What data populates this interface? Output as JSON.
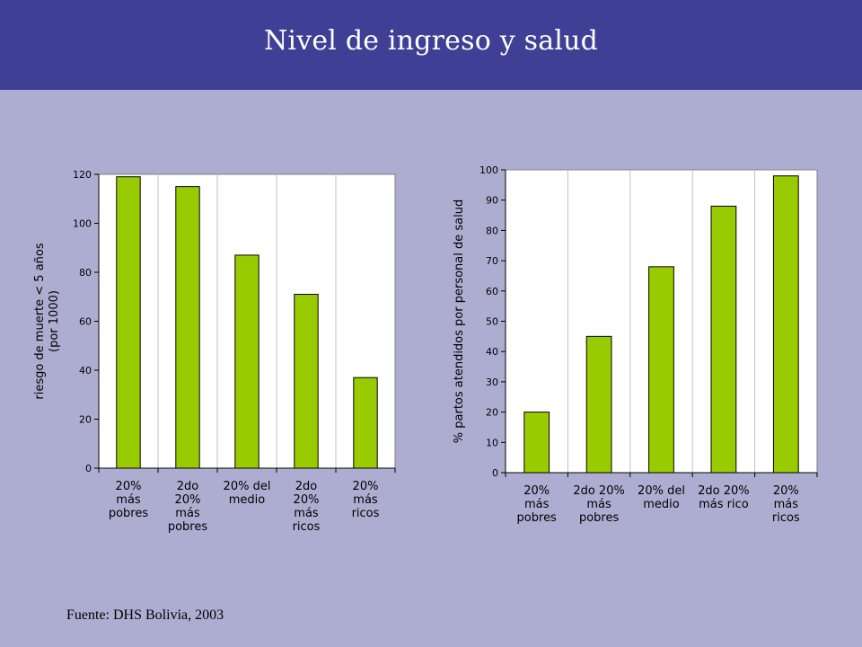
{
  "title": "Nivel de ingreso y salud",
  "source": "Fuente: DHS Bolivia, 2003",
  "colors": {
    "header": "#3f3f96",
    "background": "#adadd1",
    "bar": "#99cc00",
    "plot": "#ffffff",
    "grid": "#c0c0c0"
  },
  "chart_data": [
    {
      "type": "bar",
      "categories": [
        [
          "20%",
          "más",
          "pobres"
        ],
        [
          "2do",
          "20%",
          "más",
          "pobres"
        ],
        [
          "20% del",
          "medio"
        ],
        [
          "2do",
          "20%",
          "más",
          "ricos"
        ],
        [
          "20%",
          "más",
          "ricos"
        ]
      ],
      "values": [
        119,
        115,
        87,
        71,
        37
      ],
      "ylabel": [
        "riesgo de muerte < 5 años",
        "(por 1000)"
      ],
      "ylim": [
        0,
        120
      ],
      "yticks": [
        0,
        20,
        40,
        60,
        80,
        100,
        120
      ],
      "grid": "vertical",
      "legend": "none"
    },
    {
      "type": "bar",
      "categories": [
        [
          "20%",
          "más",
          "pobres"
        ],
        [
          "2do 20%",
          "más",
          "pobres"
        ],
        [
          "20% del",
          "medio"
        ],
        [
          "2do 20%",
          "más rico"
        ],
        [
          "20%",
          "más",
          "ricos"
        ]
      ],
      "values": [
        20,
        45,
        68,
        88,
        98
      ],
      "ylabel": [
        "% partos atendidos por personal de salud"
      ],
      "ylim": [
        0,
        100
      ],
      "yticks": [
        0,
        10,
        20,
        30,
        40,
        50,
        60,
        70,
        80,
        90,
        100
      ],
      "grid": "vertical",
      "legend": "none"
    }
  ]
}
